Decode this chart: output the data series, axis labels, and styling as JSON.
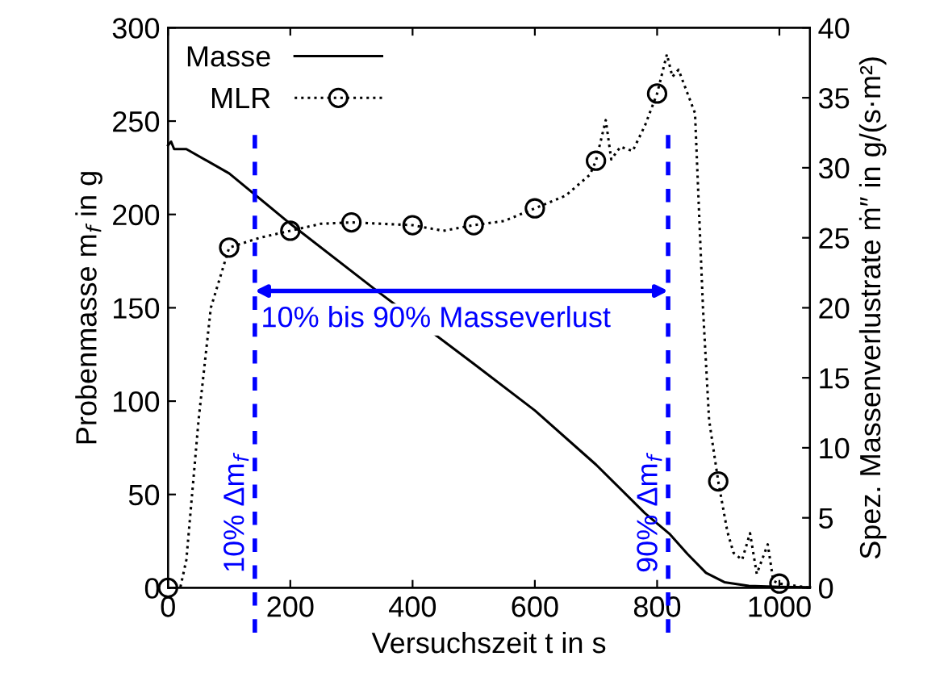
{
  "chart_data": {
    "type": "line",
    "xlabel": "Versuchszeit t in s",
    "ylabel": "Probenmasse m$_{f}$ in g",
    "y2label": "Spez. Massenverlustrate ṁ″ in g/(s·m²)",
    "xlim": [
      0,
      1050
    ],
    "xticks": [
      0,
      200,
      400,
      600,
      800,
      1000
    ],
    "ylim": [
      0,
      300
    ],
    "yticks": [
      0,
      50,
      100,
      150,
      200,
      250,
      300
    ],
    "y2lim": [
      0,
      40
    ],
    "y2ticks": [
      0,
      5,
      10,
      15,
      20,
      25,
      30,
      35,
      40
    ],
    "legend": "top left",
    "grid": false,
    "series": [
      {
        "name": "Masse",
        "color": "#000000",
        "line_style": "solid",
        "marker": "none",
        "x": [
          0,
          5,
          10,
          30,
          100,
          200,
          342,
          500,
          600,
          700,
          780,
          820,
          850,
          880,
          910,
          950,
          1000,
          1050
        ],
        "values": [
          237,
          239,
          235,
          235,
          222,
          195,
          159,
          120,
          95,
          66,
          40,
          29,
          18,
          8,
          3,
          1,
          0.5,
          0.3
        ]
      },
      {
        "name": "MLR",
        "type": "scatter",
        "color": "#000000",
        "marker": "circle",
        "axis": "y2",
        "x": [
          0,
          100,
          200,
          300,
          400,
          500,
          600,
          700,
          800,
          900,
          1000
        ],
        "values": [
          0,
          24.3,
          25.5,
          26.1,
          25.9,
          25.9,
          27.1,
          30.5,
          35.3,
          7.6,
          0.3
        ]
      },
      {
        "color": "#000000",
        "line_style": "dotted",
        "axis": "y2",
        "x": [
          0,
          20,
          30,
          50,
          70,
          100,
          150,
          200,
          250,
          300,
          350,
          400,
          450,
          500,
          550,
          600,
          650,
          690,
          700,
          716,
          725,
          740,
          760,
          780,
          800,
          816,
          825,
          835,
          862,
          875,
          885,
          900,
          915,
          925,
          939,
          952,
          963,
          981,
          990,
          1000,
          1050
        ],
        "values": [
          0,
          0,
          2,
          12,
          20,
          24.3,
          25,
          25.5,
          26,
          26.1,
          26,
          25.9,
          25.5,
          25.9,
          26.2,
          27.1,
          28,
          29.5,
          30.5,
          33.4,
          30.6,
          31.5,
          31.2,
          33,
          35.3,
          38.1,
          36.5,
          37,
          33.9,
          20,
          12,
          7.6,
          4,
          2.5,
          2,
          3.9,
          1,
          3.1,
          0.5,
          0.3,
          0
        ]
      }
    ],
    "ref_lines": [
      {
        "axis": "x",
        "value": 142,
        "label": "10% Δm$_{f}$",
        "color": "#0000ff",
        "line_style": "dashed"
      },
      {
        "axis": "x",
        "value": 818,
        "label": "90% Δm$_{f}$",
        "color": "#0000ff",
        "line_style": "dashed"
      }
    ],
    "annotations": [
      {
        "text": "10% bis 90% Masseverlust",
        "x": 142,
        "y": 159
      }
    ]
  }
}
